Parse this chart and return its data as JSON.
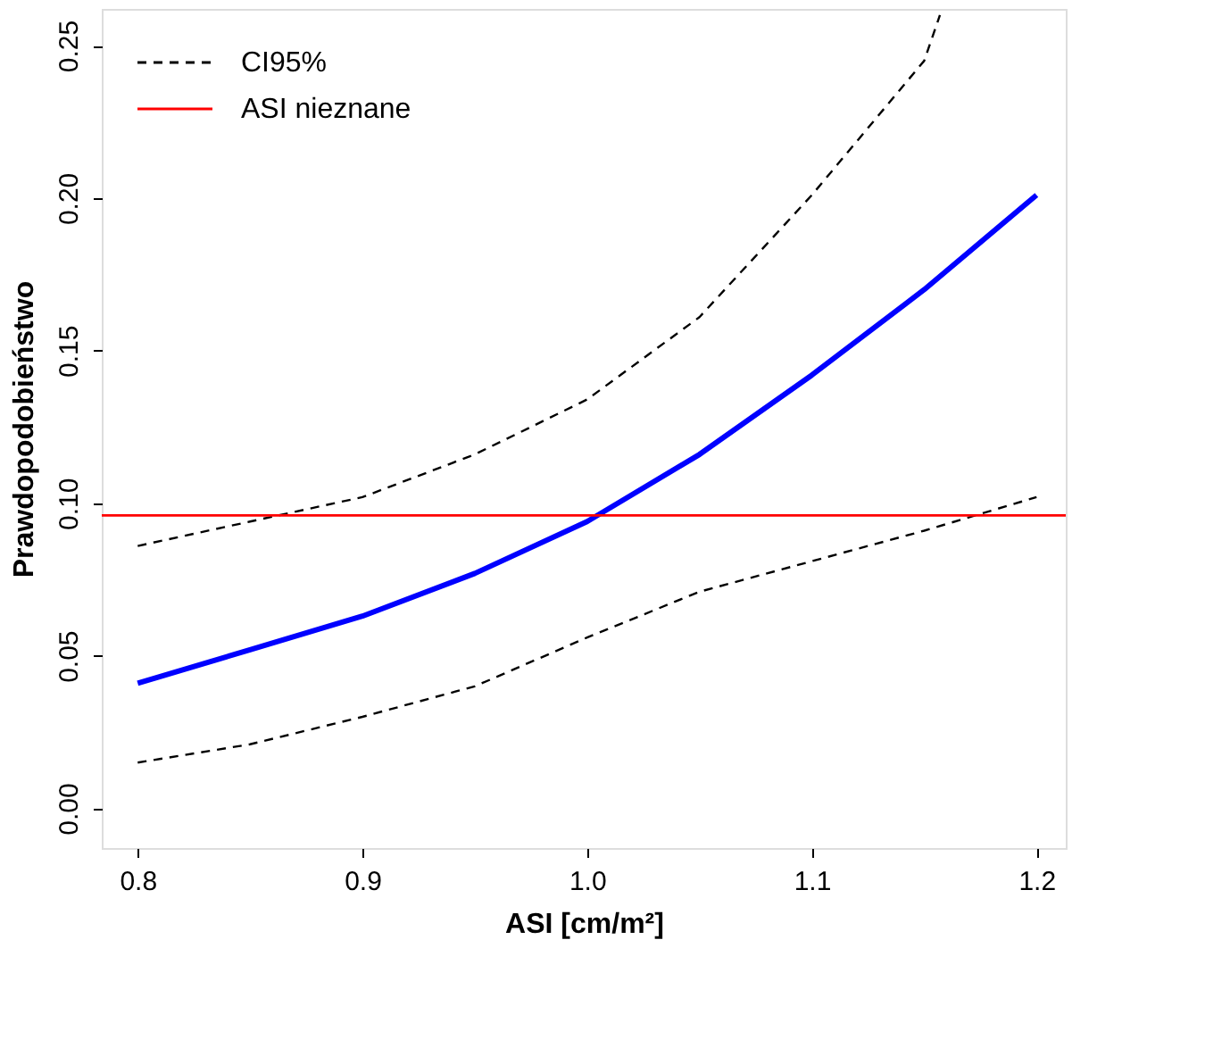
{
  "chart_data": {
    "type": "line",
    "xlabel": "ASI  [cm/m²]",
    "ylabel": "Prawdopodobieństwo",
    "x": [
      0.8,
      0.85,
      0.9,
      0.95,
      1.0,
      1.05,
      1.1,
      1.15,
      1.2
    ],
    "series": [
      {
        "color": "#0000ff",
        "values": [
          0.041,
          0.052,
          0.063,
          0.077,
          0.094,
          0.116,
          0.142,
          0.17,
          0.201
        ],
        "line_style": "solid"
      },
      {
        "name": "CI95%",
        "color": "#000000",
        "line_style": "dashed",
        "x": [
          0.8,
          0.85,
          0.9,
          0.95,
          1.0,
          1.05,
          1.1,
          1.15,
          1.157
        ],
        "values": [
          0.086,
          0.094,
          0.102,
          0.116,
          0.134,
          0.161,
          0.201,
          0.245,
          0.26
        ]
      },
      {
        "color": "#000000",
        "line_style": "dashed",
        "values": [
          0.015,
          0.021,
          0.03,
          0.04,
          0.056,
          0.071,
          0.081,
          0.091,
          0.102
        ]
      }
    ],
    "ref_lines": [
      {
        "axis": "y",
        "value": 0.096,
        "label": "ASI nieznane",
        "color": "#ff0000",
        "line_style": "solid"
      }
    ],
    "xlim": [
      0.784,
      1.213
    ],
    "ylim": [
      -0.013,
      0.262
    ],
    "xticks": [
      0.8,
      0.9,
      {
        "value": 1.0,
        "label": "1.0"
      },
      1.1,
      1.2
    ],
    "yticks": [
      {
        "value": 0,
        "label": "0.00"
      },
      {
        "value": 0.05,
        "label": "0.05"
      },
      {
        "value": 0.1,
        "label": "0.10"
      },
      {
        "value": 0.15,
        "label": "0.15"
      },
      {
        "value": 0.2,
        "label": "0.20"
      },
      {
        "value": 0.25,
        "label": "0.25"
      }
    ],
    "grid": false,
    "legend": "top left",
    "marker": "none"
  }
}
